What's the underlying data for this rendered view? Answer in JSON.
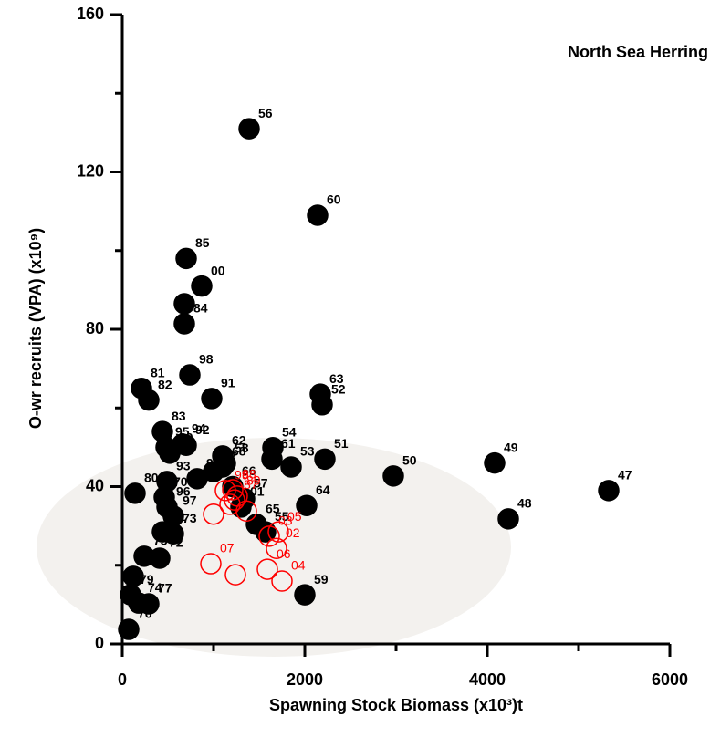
{
  "chart_data": {
    "type": "scatter",
    "title": "North Sea Herring",
    "xlabel": "Spawning Stock Biomass (x10³)t",
    "ylabel": "O-wr recruits (VPA) (x10⁹)",
    "xlim": [
      0,
      6000
    ],
    "xticks": [
      0,
      2000,
      4000,
      6000
    ],
    "xminor": [
      1000,
      3000,
      5000
    ],
    "ylim": [
      0,
      160
    ],
    "yticks": [
      0,
      40,
      80,
      120,
      160
    ],
    "yminor": [
      20,
      60,
      100,
      140
    ],
    "series": [
      {
        "color": "#000000",
        "filled": true,
        "labels": [
          "56",
          "60",
          "85",
          "00",
          "84",
          null,
          "98",
          "91",
          "81",
          "82",
          "63",
          "52",
          "83",
          "95",
          "92",
          "62",
          "54",
          "61",
          "53",
          "51",
          "50",
          "49",
          "47",
          "48",
          "64",
          "59",
          "80",
          "69",
          "93",
          "70",
          "96",
          "97",
          "68",
          "66",
          "57",
          "65",
          "55",
          "01",
          "73",
          "72",
          "78",
          "74",
          "76",
          "71",
          "75",
          "77",
          "79",
          "94",
          "90",
          "67",
          "58"
        ],
        "x": [
          1390,
          2140,
          700,
          870,
          680,
          680,
          740,
          980,
          210,
          290,
          2170,
          2190,
          440,
          480,
          700,
          1100,
          1650,
          1640,
          1850,
          2220,
          2970,
          4080,
          5330,
          4230,
          2020,
          2000,
          140,
          520,
          490,
          460,
          490,
          560,
          1100,
          1210,
          1340,
          1470,
          1570,
          1300,
          560,
          410,
          120,
          180,
          70,
          440,
          240,
          290,
          90,
          660,
          820,
          1000,
          1130
        ],
        "values": [
          131,
          109,
          98,
          91,
          81.4,
          86.5,
          68.4,
          62.4,
          65,
          62,
          63.5,
          60.8,
          54,
          50,
          50.5,
          47.8,
          49.9,
          47,
          45,
          47,
          42.7,
          46,
          39,
          31.8,
          35.2,
          12.5,
          38.3,
          48.5,
          41.3,
          37.3,
          34.8,
          32.5,
          45,
          40,
          36.9,
          30.4,
          28.5,
          34.8,
          28,
          21.8,
          17.2,
          10.4,
          3.7,
          28.5,
          22.3,
          10.2,
          12.5,
          50.8,
          42,
          43.8,
          45.9
        ]
      },
      {
        "color": "#ff0000",
        "filled": false,
        "labels": [
          "88",
          "89",
          "99",
          "87",
          "03",
          "05",
          "02",
          "04",
          "06",
          "07",
          null,
          null,
          null,
          null
        ],
        "x": [
          1210,
          1260,
          1130,
          1230,
          1610,
          1710,
          1690,
          1750,
          1590,
          970,
          1240,
          1000,
          1180,
          1360
        ],
        "values": [
          39.2,
          37.6,
          39,
          36.6,
          27.4,
          28.5,
          24.3,
          16,
          19,
          20.4,
          17.6,
          33,
          35.5,
          33.8
        ]
      }
    ]
  }
}
